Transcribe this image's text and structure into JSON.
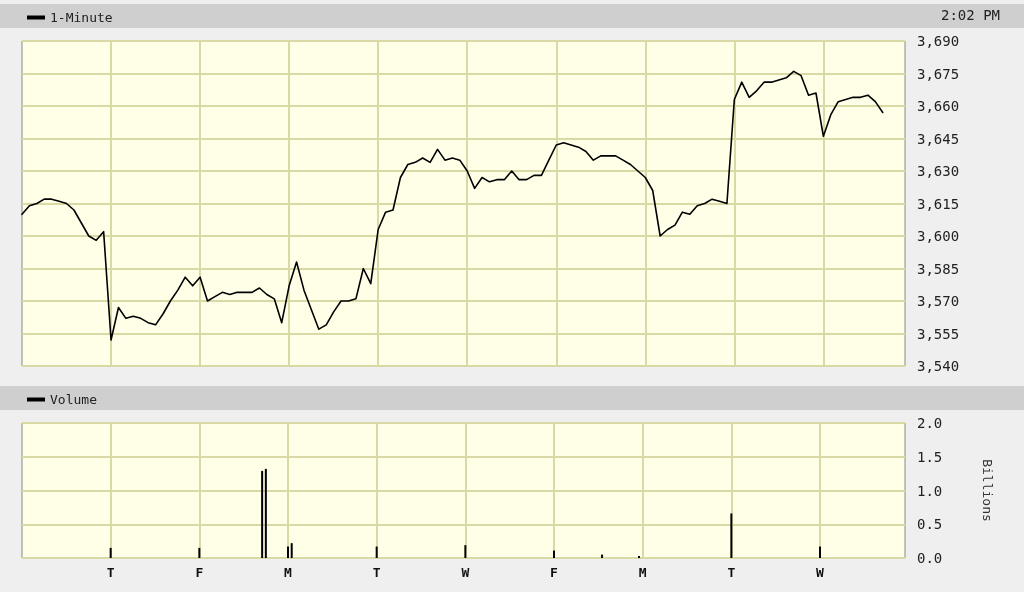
{
  "chart_data": [
    {
      "type": "line",
      "annotations": [
        "2:02 PM"
      ],
      "legend": "top left",
      "grid": true,
      "tick_labels": "y",
      "line_style": "solid",
      "categories": [
        null,
        null,
        null,
        null,
        null,
        null,
        null,
        null,
        null,
        null,
        null,
        null,
        null,
        null,
        null,
        null,
        null,
        null,
        null,
        null,
        null,
        null,
        null,
        null,
        null,
        null,
        null,
        null,
        null,
        null,
        null,
        null,
        null,
        null,
        null,
        null,
        null,
        null,
        null,
        null,
        null,
        null,
        null,
        null,
        null,
        null,
        null,
        null,
        null,
        null,
        null,
        null,
        null,
        null,
        null,
        null,
        null,
        null,
        null,
        null,
        null,
        null,
        null,
        null,
        null,
        null,
        null,
        null,
        null,
        null,
        null,
        null,
        null,
        null,
        null,
        null,
        null,
        null,
        null,
        null,
        null,
        null,
        null,
        null,
        null,
        null,
        null,
        null,
        null,
        null,
        null,
        null,
        null,
        null,
        null,
        null,
        null,
        null,
        null,
        null,
        null,
        null,
        null,
        null,
        null,
        null,
        null,
        null,
        null,
        null,
        null,
        null,
        null,
        null,
        null,
        null,
        null,
        null,
        null,
        null
      ],
      "ylim": [
        3540,
        3690
      ],
      "yticks": [
        {
          "value": 3540,
          "label": "3,540"
        },
        {
          "value": 3555,
          "label": "3,555"
        },
        {
          "value": 3570,
          "label": "3,570"
        },
        {
          "value": 3585,
          "label": "3,585"
        },
        {
          "value": 3600,
          "label": "3,600"
        },
        {
          "value": 3615,
          "label": "3,615"
        },
        {
          "value": 3630,
          "label": "3,630"
        },
        {
          "value": 3645,
          "label": "3,645"
        },
        {
          "value": 3660,
          "label": "3,660"
        },
        {
          "value": 3675,
          "label": "3,675"
        },
        {
          "value": 3690,
          "label": "3,690"
        }
      ],
      "series": [
        {
          "name": "1-Minute",
          "color": "#000000",
          "values": [
            3610,
            3614,
            3615,
            3617,
            3617,
            3616,
            3615,
            3612,
            3606,
            3600,
            3598,
            3602,
            3552,
            3567,
            3562,
            3563,
            3562,
            3560,
            3559,
            3564,
            3570,
            3575,
            3581,
            3577,
            3581,
            3570,
            3572,
            3574,
            3573,
            3574,
            3574,
            3574,
            3576,
            3573,
            3571,
            3560,
            3577,
            3588,
            3575,
            3566,
            3557,
            3559,
            3565,
            3570,
            3570,
            3571,
            3585,
            3578,
            3603,
            3611,
            3612,
            3627,
            3633,
            3634,
            3636,
            3634,
            3640,
            3635,
            3636,
            3635,
            3630,
            3622,
            3627,
            3625,
            3626,
            3626,
            3630,
            3626,
            3626,
            3628,
            3628,
            3635,
            3642,
            3643,
            3642,
            3641,
            3639,
            3635,
            3637,
            3637,
            3637,
            3635,
            3633,
            3630,
            3627,
            3621,
            3600,
            3603,
            3605,
            3611,
            3610,
            3614,
            3615,
            3617,
            3616,
            3615,
            3663,
            3671,
            3664,
            3667,
            3671,
            3671,
            3672,
            3673,
            3676,
            3674,
            3665,
            3666,
            3646,
            3656,
            3662,
            3663,
            3664,
            3664,
            3665,
            3662,
            3657,
            null,
            null,
            null
          ]
        }
      ]
    },
    {
      "type": "bar",
      "legend": "top left",
      "grid": true,
      "y2label": "Billions",
      "categories": [
        null,
        null,
        null,
        null,
        null,
        null,
        null,
        null,
        null,
        null,
        null,
        null,
        null,
        null,
        null,
        null,
        null,
        null,
        null,
        null,
        null,
        null,
        null,
        null,
        "T",
        null,
        null,
        null,
        null,
        null,
        null,
        null,
        null,
        null,
        null,
        null,
        null,
        null,
        null,
        null,
        null,
        null,
        null,
        null,
        null,
        null,
        null,
        null,
        "F",
        null,
        null,
        null,
        null,
        null,
        null,
        null,
        null,
        null,
        null,
        null,
        null,
        null,
        null,
        null,
        null,
        null,
        null,
        null,
        null,
        null,
        null,
        null,
        "M",
        null,
        null,
        null,
        null,
        null,
        null,
        null,
        null,
        null,
        null,
        null,
        null,
        null,
        null,
        null,
        null,
        null,
        null,
        null,
        null,
        null,
        null,
        null,
        "T",
        null,
        null,
        null,
        null,
        null,
        null,
        null,
        null,
        null,
        null,
        null,
        null,
        null,
        null,
        null,
        null,
        null,
        null,
        null,
        null,
        null,
        null,
        null,
        "W",
        null,
        null,
        null,
        null,
        null,
        null,
        null,
        null,
        null,
        null,
        null,
        null,
        null,
        null,
        null,
        null,
        null,
        null,
        null,
        null,
        null,
        null,
        null,
        "F",
        null,
        null,
        null,
        null,
        null,
        null,
        null,
        null,
        null,
        null,
        null,
        null,
        null,
        null,
        null,
        null,
        null,
        null,
        null,
        null,
        null,
        null,
        null,
        "M",
        null,
        null,
        null,
        null,
        null,
        null,
        null,
        null,
        null,
        null,
        null,
        null,
        null,
        null,
        null,
        null,
        null,
        null,
        null,
        null,
        null,
        null,
        null,
        "T",
        null,
        null,
        null,
        null,
        null,
        null,
        null,
        null,
        null,
        null,
        null,
        null,
        null,
        null,
        null,
        null,
        null,
        null,
        null,
        null,
        null,
        null,
        null,
        "W",
        null,
        null,
        null,
        null,
        null,
        null,
        null,
        null,
        null,
        null,
        null,
        null,
        null,
        null,
        null,
        null,
        null,
        null,
        null,
        null,
        null,
        null,
        null
      ],
      "ylim": [
        0,
        2
      ],
      "yticks": [
        {
          "value": 0,
          "label": "0.0"
        },
        {
          "value": 0.5,
          "label": "0.5"
        },
        {
          "value": 1,
          "label": "1.0"
        },
        {
          "value": 1.5,
          "label": "1.5"
        },
        {
          "value": 2,
          "label": "2.0"
        }
      ],
      "series": [
        {
          "name": "Volume",
          "color": "#000000",
          "values": [
            0,
            0,
            0,
            0,
            0,
            0,
            0,
            0,
            0,
            0,
            0,
            0,
            0,
            0,
            0,
            0,
            0,
            0,
            0,
            0,
            0,
            0,
            0,
            0,
            0.15,
            0,
            0,
            0,
            0,
            0,
            0,
            0,
            0,
            0,
            0,
            0,
            0,
            0,
            0,
            0,
            0,
            0,
            0,
            0,
            0,
            0,
            0,
            0,
            0.15,
            0,
            0,
            0,
            0,
            0,
            0,
            0,
            0,
            0,
            0,
            0,
            0,
            0,
            0,
            0,
            0,
            1.29,
            1.32,
            0,
            0,
            0,
            0,
            0,
            0.17,
            0.22,
            0,
            0,
            0,
            0,
            0,
            0,
            0,
            0,
            0,
            0,
            0,
            0,
            0,
            0,
            0,
            0,
            0,
            0,
            0,
            0,
            0,
            0,
            0.17,
            0,
            0,
            0,
            0,
            0,
            0,
            0,
            0,
            0,
            0,
            0,
            0,
            0,
            0,
            0,
            0,
            0,
            0,
            0,
            0,
            0,
            0,
            0,
            0.19,
            0,
            0,
            0,
            0,
            0,
            0,
            0,
            0,
            0,
            0,
            0,
            0,
            0,
            0,
            0,
            0,
            0,
            0,
            0,
            0,
            0,
            0,
            0,
            0.11,
            0,
            0,
            0,
            0,
            0,
            0,
            0,
            0,
            0,
            0,
            0,
            0,
            0.05,
            0,
            0,
            0,
            0,
            0,
            0,
            0,
            0,
            0,
            0.03,
            0,
            0,
            0,
            0,
            0,
            0,
            0,
            0,
            0,
            0,
            0,
            0,
            0,
            0,
            0,
            0,
            0,
            0,
            0,
            0,
            0,
            0,
            0,
            0,
            0.66,
            0,
            0,
            0,
            0,
            0,
            0,
            0,
            0,
            0,
            0,
            0,
            0,
            0,
            0,
            0,
            0,
            0,
            0,
            0,
            0,
            0,
            0,
            0,
            0.17,
            0,
            0,
            0,
            0,
            0,
            0,
            0,
            0,
            0,
            0,
            0,
            0,
            0,
            0,
            0,
            0,
            null,
            null,
            null,
            null,
            null,
            null,
            null
          ]
        }
      ]
    }
  ]
}
